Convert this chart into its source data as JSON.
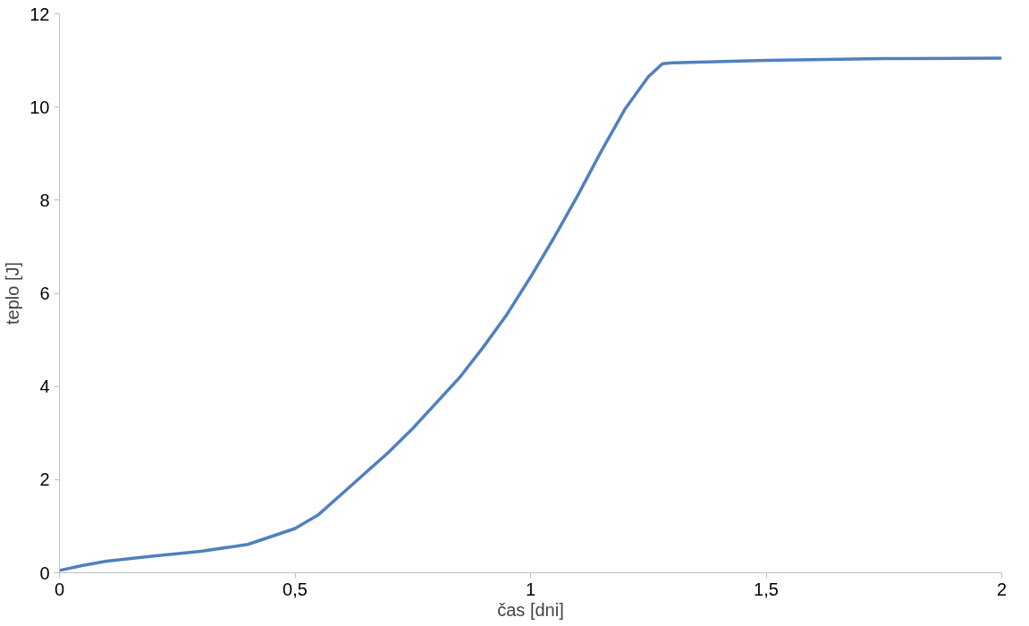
{
  "chart_data": {
    "type": "line",
    "xlabel": "čas [dni]",
    "ylabel": "teplo [J]",
    "x": [
      0,
      0.05,
      0.1,
      0.2,
      0.3,
      0.4,
      0.5,
      0.55,
      0.6,
      0.65,
      0.7,
      0.75,
      0.8,
      0.85,
      0.9,
      0.95,
      1.0,
      1.05,
      1.1,
      1.15,
      1.2,
      1.25,
      1.28,
      1.3,
      1.5,
      1.75,
      2
    ],
    "series": [
      {
        "color": "#4f81bd",
        "values": [
          0.05,
          0.16,
          0.25,
          0.36,
          0.46,
          0.61,
          0.95,
          1.25,
          1.7,
          2.15,
          2.6,
          3.1,
          3.65,
          4.2,
          4.85,
          5.55,
          6.35,
          7.2,
          8.1,
          9.05,
          9.95,
          10.65,
          10.93,
          10.95,
          11.0,
          11.04,
          11.05
        ]
      }
    ],
    "xlim": [
      0,
      2
    ],
    "ylim": [
      0,
      12
    ],
    "xticks": [
      0,
      {
        "value": 0.5,
        "label": "0,5"
      },
      1,
      {
        "value": 1.5,
        "label": "1,5"
      },
      2
    ],
    "yticks": [
      0,
      2,
      4,
      6,
      8,
      10,
      12
    ],
    "grid": false,
    "marker": "none",
    "line_style": "solid"
  }
}
